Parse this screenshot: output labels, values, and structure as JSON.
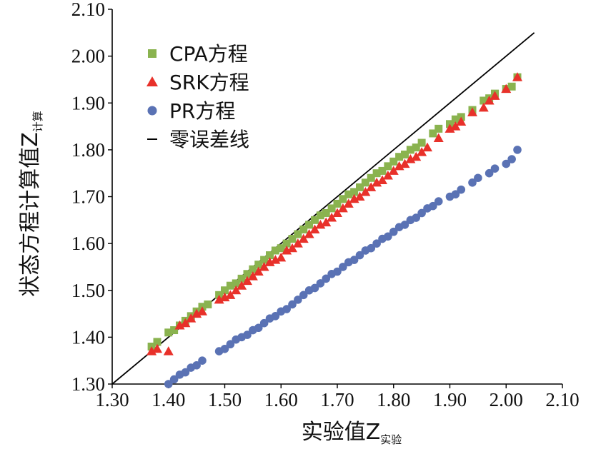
{
  "chart_data": {
    "type": "scatter",
    "title": "",
    "xlabel": "实验值Z",
    "xlabel_sub": "实验",
    "ylabel": "状态方程计算值Z",
    "ylabel_sub": "计算",
    "xlim": [
      1.3,
      2.1
    ],
    "ylim": [
      1.3,
      2.1
    ],
    "x_ticks": [
      "1.30",
      "1.40",
      "1.50",
      "1.60",
      "1.70",
      "1.80",
      "1.90",
      "2.00",
      "2.10"
    ],
    "y_ticks": [
      "1.30",
      "1.40",
      "1.50",
      "1.60",
      "1.70",
      "1.80",
      "1.90",
      "2.00",
      "2.10"
    ],
    "grid": false,
    "legend_position": "top-left",
    "series": [
      {
        "name": "CPA方程",
        "marker": "square",
        "color": "#8ab34f",
        "x": [
          1.37,
          1.38,
          1.4,
          1.41,
          1.42,
          1.43,
          1.44,
          1.45,
          1.46,
          1.47,
          1.49,
          1.5,
          1.51,
          1.52,
          1.53,
          1.54,
          1.55,
          1.56,
          1.57,
          1.58,
          1.59,
          1.6,
          1.61,
          1.62,
          1.63,
          1.64,
          1.65,
          1.66,
          1.67,
          1.68,
          1.69,
          1.7,
          1.71,
          1.72,
          1.73,
          1.74,
          1.75,
          1.76,
          1.77,
          1.78,
          1.79,
          1.8,
          1.81,
          1.82,
          1.83,
          1.84,
          1.85,
          1.87,
          1.88,
          1.9,
          1.91,
          1.92,
          1.94,
          1.96,
          1.97,
          1.98,
          2.0,
          2.01,
          2.02
        ],
        "y": [
          1.38,
          1.39,
          1.41,
          1.415,
          1.425,
          1.435,
          1.445,
          1.455,
          1.465,
          1.47,
          1.49,
          1.5,
          1.51,
          1.515,
          1.525,
          1.535,
          1.545,
          1.555,
          1.565,
          1.575,
          1.585,
          1.59,
          1.6,
          1.61,
          1.62,
          1.63,
          1.64,
          1.65,
          1.66,
          1.665,
          1.675,
          1.685,
          1.695,
          1.705,
          1.71,
          1.72,
          1.73,
          1.74,
          1.75,
          1.755,
          1.765,
          1.775,
          1.785,
          1.79,
          1.8,
          1.805,
          1.815,
          1.835,
          1.845,
          1.855,
          1.865,
          1.87,
          1.885,
          1.905,
          1.91,
          1.92,
          1.93,
          1.935,
          1.955
        ]
      },
      {
        "name": "SRK方程",
        "marker": "triangle",
        "color": "#e8312a",
        "x": [
          1.37,
          1.38,
          1.4,
          1.42,
          1.43,
          1.44,
          1.45,
          1.46,
          1.49,
          1.5,
          1.51,
          1.52,
          1.53,
          1.54,
          1.55,
          1.56,
          1.57,
          1.58,
          1.59,
          1.6,
          1.61,
          1.62,
          1.63,
          1.64,
          1.65,
          1.66,
          1.67,
          1.68,
          1.69,
          1.7,
          1.71,
          1.72,
          1.73,
          1.74,
          1.75,
          1.76,
          1.77,
          1.78,
          1.79,
          1.8,
          1.81,
          1.82,
          1.83,
          1.84,
          1.85,
          1.86,
          1.88,
          1.9,
          1.91,
          1.92,
          1.94,
          1.96,
          1.97,
          1.98,
          2.0,
          2.02
        ],
        "y": [
          1.37,
          1.375,
          1.37,
          1.425,
          1.43,
          1.44,
          1.45,
          1.455,
          1.48,
          1.485,
          1.49,
          1.5,
          1.51,
          1.52,
          1.53,
          1.54,
          1.55,
          1.56,
          1.565,
          1.57,
          1.585,
          1.59,
          1.6,
          1.61,
          1.62,
          1.63,
          1.64,
          1.645,
          1.655,
          1.665,
          1.675,
          1.685,
          1.695,
          1.7,
          1.71,
          1.72,
          1.73,
          1.735,
          1.745,
          1.755,
          1.765,
          1.77,
          1.78,
          1.785,
          1.795,
          1.805,
          1.825,
          1.845,
          1.85,
          1.86,
          1.88,
          1.89,
          1.905,
          1.915,
          1.93,
          1.955
        ]
      },
      {
        "name": "PR方程",
        "marker": "circle",
        "color": "#5a72b4",
        "x": [
          1.4,
          1.41,
          1.42,
          1.43,
          1.44,
          1.45,
          1.46,
          1.49,
          1.5,
          1.51,
          1.52,
          1.53,
          1.54,
          1.55,
          1.56,
          1.57,
          1.58,
          1.59,
          1.6,
          1.61,
          1.62,
          1.63,
          1.64,
          1.65,
          1.66,
          1.67,
          1.68,
          1.69,
          1.7,
          1.71,
          1.72,
          1.73,
          1.74,
          1.75,
          1.76,
          1.77,
          1.78,
          1.79,
          1.8,
          1.81,
          1.82,
          1.83,
          1.84,
          1.85,
          1.86,
          1.87,
          1.88,
          1.9,
          1.91,
          1.92,
          1.94,
          1.95,
          1.97,
          1.98,
          2.0,
          2.01,
          2.02
        ],
        "y": [
          1.3,
          1.31,
          1.32,
          1.325,
          1.335,
          1.34,
          1.35,
          1.37,
          1.375,
          1.385,
          1.395,
          1.4,
          1.405,
          1.415,
          1.42,
          1.43,
          1.44,
          1.445,
          1.455,
          1.46,
          1.47,
          1.48,
          1.49,
          1.5,
          1.505,
          1.515,
          1.525,
          1.535,
          1.54,
          1.55,
          1.56,
          1.565,
          1.575,
          1.585,
          1.59,
          1.6,
          1.61,
          1.615,
          1.625,
          1.635,
          1.64,
          1.65,
          1.655,
          1.665,
          1.675,
          1.68,
          1.69,
          1.7,
          1.705,
          1.715,
          1.73,
          1.74,
          1.75,
          1.76,
          1.77,
          1.78,
          1.8
        ]
      },
      {
        "name": "零误差线",
        "marker": "line",
        "color": "#000000",
        "x": [
          1.3,
          2.05
        ],
        "y": [
          1.3,
          2.05
        ]
      }
    ]
  }
}
